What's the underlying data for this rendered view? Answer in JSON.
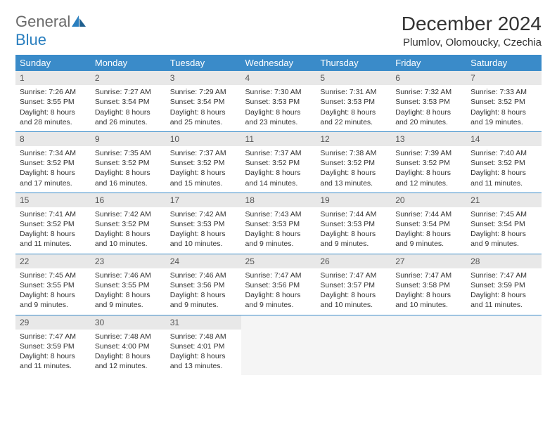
{
  "logo": {
    "part1": "General",
    "part2": "Blue"
  },
  "title": "December 2024",
  "location": "Plumlov, Olomoucky, Czechia",
  "colors": {
    "header_bg": "#3a8bc9",
    "header_text": "#ffffff",
    "daynum_bg": "#e8e8e8",
    "border": "#3a8bc9",
    "logo_gray": "#6a6a6a",
    "logo_blue": "#2a7fbf",
    "body_text": "#333333"
  },
  "weekdays": [
    "Sunday",
    "Monday",
    "Tuesday",
    "Wednesday",
    "Thursday",
    "Friday",
    "Saturday"
  ],
  "weeks": [
    [
      {
        "n": "1",
        "sunrise": "7:26 AM",
        "sunset": "3:55 PM",
        "dl": "8 hours and 28 minutes."
      },
      {
        "n": "2",
        "sunrise": "7:27 AM",
        "sunset": "3:54 PM",
        "dl": "8 hours and 26 minutes."
      },
      {
        "n": "3",
        "sunrise": "7:29 AM",
        "sunset": "3:54 PM",
        "dl": "8 hours and 25 minutes."
      },
      {
        "n": "4",
        "sunrise": "7:30 AM",
        "sunset": "3:53 PM",
        "dl": "8 hours and 23 minutes."
      },
      {
        "n": "5",
        "sunrise": "7:31 AM",
        "sunset": "3:53 PM",
        "dl": "8 hours and 22 minutes."
      },
      {
        "n": "6",
        "sunrise": "7:32 AM",
        "sunset": "3:53 PM",
        "dl": "8 hours and 20 minutes."
      },
      {
        "n": "7",
        "sunrise": "7:33 AM",
        "sunset": "3:52 PM",
        "dl": "8 hours and 19 minutes."
      }
    ],
    [
      {
        "n": "8",
        "sunrise": "7:34 AM",
        "sunset": "3:52 PM",
        "dl": "8 hours and 17 minutes."
      },
      {
        "n": "9",
        "sunrise": "7:35 AM",
        "sunset": "3:52 PM",
        "dl": "8 hours and 16 minutes."
      },
      {
        "n": "10",
        "sunrise": "7:37 AM",
        "sunset": "3:52 PM",
        "dl": "8 hours and 15 minutes."
      },
      {
        "n": "11",
        "sunrise": "7:37 AM",
        "sunset": "3:52 PM",
        "dl": "8 hours and 14 minutes."
      },
      {
        "n": "12",
        "sunrise": "7:38 AM",
        "sunset": "3:52 PM",
        "dl": "8 hours and 13 minutes."
      },
      {
        "n": "13",
        "sunrise": "7:39 AM",
        "sunset": "3:52 PM",
        "dl": "8 hours and 12 minutes."
      },
      {
        "n": "14",
        "sunrise": "7:40 AM",
        "sunset": "3:52 PM",
        "dl": "8 hours and 11 minutes."
      }
    ],
    [
      {
        "n": "15",
        "sunrise": "7:41 AM",
        "sunset": "3:52 PM",
        "dl": "8 hours and 11 minutes."
      },
      {
        "n": "16",
        "sunrise": "7:42 AM",
        "sunset": "3:52 PM",
        "dl": "8 hours and 10 minutes."
      },
      {
        "n": "17",
        "sunrise": "7:42 AM",
        "sunset": "3:53 PM",
        "dl": "8 hours and 10 minutes."
      },
      {
        "n": "18",
        "sunrise": "7:43 AM",
        "sunset": "3:53 PM",
        "dl": "8 hours and 9 minutes."
      },
      {
        "n": "19",
        "sunrise": "7:44 AM",
        "sunset": "3:53 PM",
        "dl": "8 hours and 9 minutes."
      },
      {
        "n": "20",
        "sunrise": "7:44 AM",
        "sunset": "3:54 PM",
        "dl": "8 hours and 9 minutes."
      },
      {
        "n": "21",
        "sunrise": "7:45 AM",
        "sunset": "3:54 PM",
        "dl": "8 hours and 9 minutes."
      }
    ],
    [
      {
        "n": "22",
        "sunrise": "7:45 AM",
        "sunset": "3:55 PM",
        "dl": "8 hours and 9 minutes."
      },
      {
        "n": "23",
        "sunrise": "7:46 AM",
        "sunset": "3:55 PM",
        "dl": "8 hours and 9 minutes."
      },
      {
        "n": "24",
        "sunrise": "7:46 AM",
        "sunset": "3:56 PM",
        "dl": "8 hours and 9 minutes."
      },
      {
        "n": "25",
        "sunrise": "7:47 AM",
        "sunset": "3:56 PM",
        "dl": "8 hours and 9 minutes."
      },
      {
        "n": "26",
        "sunrise": "7:47 AM",
        "sunset": "3:57 PM",
        "dl": "8 hours and 10 minutes."
      },
      {
        "n": "27",
        "sunrise": "7:47 AM",
        "sunset": "3:58 PM",
        "dl": "8 hours and 10 minutes."
      },
      {
        "n": "28",
        "sunrise": "7:47 AM",
        "sunset": "3:59 PM",
        "dl": "8 hours and 11 minutes."
      }
    ],
    [
      {
        "n": "29",
        "sunrise": "7:47 AM",
        "sunset": "3:59 PM",
        "dl": "8 hours and 11 minutes."
      },
      {
        "n": "30",
        "sunrise": "7:48 AM",
        "sunset": "4:00 PM",
        "dl": "8 hours and 12 minutes."
      },
      {
        "n": "31",
        "sunrise": "7:48 AM",
        "sunset": "4:01 PM",
        "dl": "8 hours and 13 minutes."
      },
      null,
      null,
      null,
      null
    ]
  ],
  "labels": {
    "sunrise": "Sunrise:",
    "sunset": "Sunset:",
    "daylight": "Daylight:"
  }
}
